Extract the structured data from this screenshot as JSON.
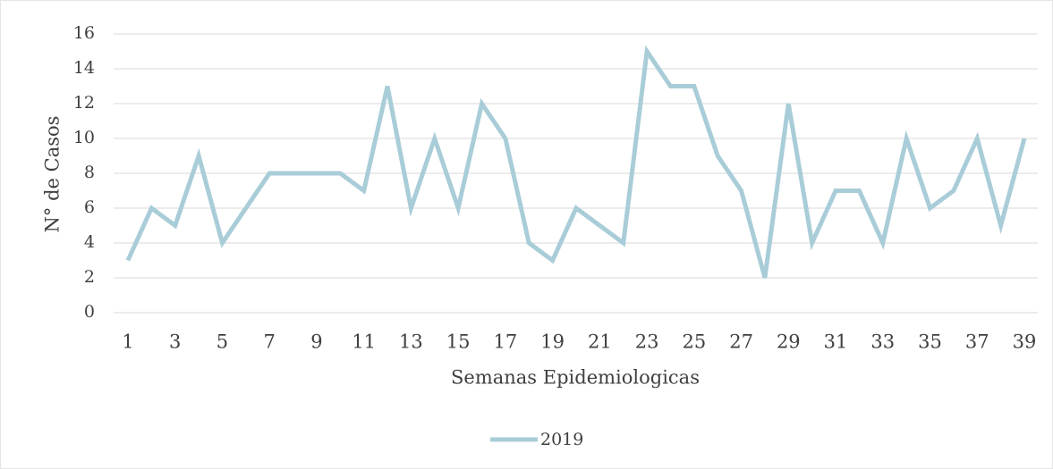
{
  "chart_data": {
    "type": "line",
    "x": [
      1,
      2,
      3,
      4,
      5,
      6,
      7,
      8,
      9,
      10,
      11,
      12,
      13,
      14,
      15,
      16,
      17,
      18,
      19,
      20,
      21,
      22,
      23,
      24,
      25,
      26,
      27,
      28,
      29,
      30,
      31,
      32,
      33,
      34,
      35,
      36,
      37,
      38,
      39
    ],
    "series": [
      {
        "name": "2019",
        "color": "#a9cdd8",
        "values": [
          3,
          6,
          5,
          9,
          4,
          6,
          8,
          8,
          8,
          8,
          7,
          13,
          6,
          10,
          6,
          12,
          10,
          4,
          3,
          6,
          5,
          4,
          15,
          13,
          13,
          9,
          7,
          2,
          12,
          4,
          7,
          7,
          4,
          10,
          6,
          7,
          10,
          5,
          10
        ]
      }
    ],
    "xlim": [
      1,
      39
    ],
    "xticks": [
      1,
      3,
      5,
      7,
      9,
      11,
      13,
      15,
      17,
      19,
      21,
      23,
      25,
      27,
      29,
      31,
      33,
      35,
      37,
      39
    ],
    "ylim": [
      0,
      16
    ],
    "yticks": [
      0,
      2,
      4,
      6,
      8,
      10,
      12,
      14,
      16
    ],
    "xlabel": "Semanas Epidemiologicas",
    "ylabel": "N° de Casos",
    "grid": true,
    "legend": "bottom"
  }
}
